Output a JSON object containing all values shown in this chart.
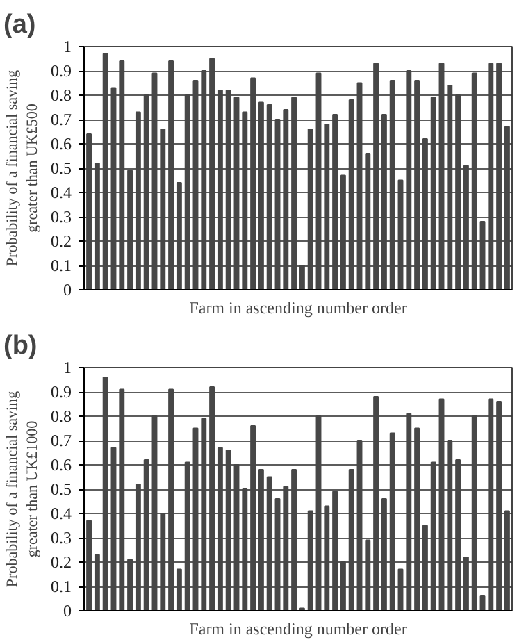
{
  "chart_data": [
    {
      "type": "bar",
      "title": "(a)",
      "xlabel": "Farm in ascending number order",
      "ylabel": "Probability of a financial saving\ngreater than UK£500",
      "tick_labels": "y",
      "grid": "y",
      "ylim": [
        0,
        1
      ],
      "yticks": [
        0,
        0.1,
        0.2,
        0.3,
        0.4,
        0.5,
        0.6,
        0.7,
        0.8,
        0.9,
        1
      ],
      "color": "#474747",
      "categories": [
        null,
        null,
        null,
        null,
        null,
        null,
        null,
        null,
        null,
        null,
        null,
        null,
        null,
        null,
        null,
        null,
        null,
        null,
        null,
        null,
        null,
        null,
        null,
        null,
        null,
        null,
        null,
        null,
        null,
        null,
        null,
        null,
        null,
        null,
        null,
        null,
        null,
        null,
        null,
        null,
        null,
        null,
        null,
        null,
        null,
        null,
        null,
        null,
        null,
        null,
        null,
        null
      ],
      "values": [
        0.64,
        0.52,
        0.97,
        0.83,
        0.94,
        0.49,
        0.73,
        0.8,
        0.89,
        0.66,
        0.94,
        0.44,
        0.8,
        0.86,
        0.9,
        0.95,
        0.82,
        0.82,
        0.79,
        0.73,
        0.87,
        0.77,
        0.76,
        0.7,
        0.74,
        0.79,
        0.1,
        0.66,
        0.89,
        0.68,
        0.72,
        0.47,
        0.78,
        0.85,
        0.56,
        0.93,
        0.72,
        0.86,
        0.45,
        0.9,
        0.86,
        0.62,
        0.79,
        0.93,
        0.84,
        0.8,
        0.51,
        0.89,
        0.28,
        0.93,
        0.93,
        0.67
      ]
    },
    {
      "type": "bar",
      "title": "(b)",
      "xlabel": "Farm in ascending number order",
      "ylabel": "Probability of a financial saving\ngreater than UK£1000",
      "tick_labels": "y",
      "grid": "y",
      "ylim": [
        0,
        1
      ],
      "yticks": [
        0,
        0.1,
        0.2,
        0.3,
        0.4,
        0.5,
        0.6,
        0.7,
        0.8,
        0.9,
        1
      ],
      "color": "#474747",
      "categories": [
        null,
        null,
        null,
        null,
        null,
        null,
        null,
        null,
        null,
        null,
        null,
        null,
        null,
        null,
        null,
        null,
        null,
        null,
        null,
        null,
        null,
        null,
        null,
        null,
        null,
        null,
        null,
        null,
        null,
        null,
        null,
        null,
        null,
        null,
        null,
        null,
        null,
        null,
        null,
        null,
        null,
        null,
        null,
        null,
        null,
        null,
        null,
        null,
        null,
        null,
        null,
        null
      ],
      "values": [
        0.37,
        0.23,
        0.96,
        0.67,
        0.91,
        0.21,
        0.52,
        0.62,
        0.8,
        0.4,
        0.91,
        0.17,
        0.61,
        0.75,
        0.79,
        0.92,
        0.67,
        0.66,
        0.6,
        0.5,
        0.76,
        0.58,
        0.55,
        0.46,
        0.51,
        0.58,
        0.01,
        0.41,
        0.8,
        0.43,
        0.49,
        0.2,
        0.58,
        0.7,
        0.29,
        0.88,
        0.46,
        0.73,
        0.17,
        0.81,
        0.75,
        0.35,
        0.61,
        0.87,
        0.7,
        0.62,
        0.22,
        0.8,
        0.06,
        0.87,
        0.86,
        0.41
      ]
    }
  ]
}
